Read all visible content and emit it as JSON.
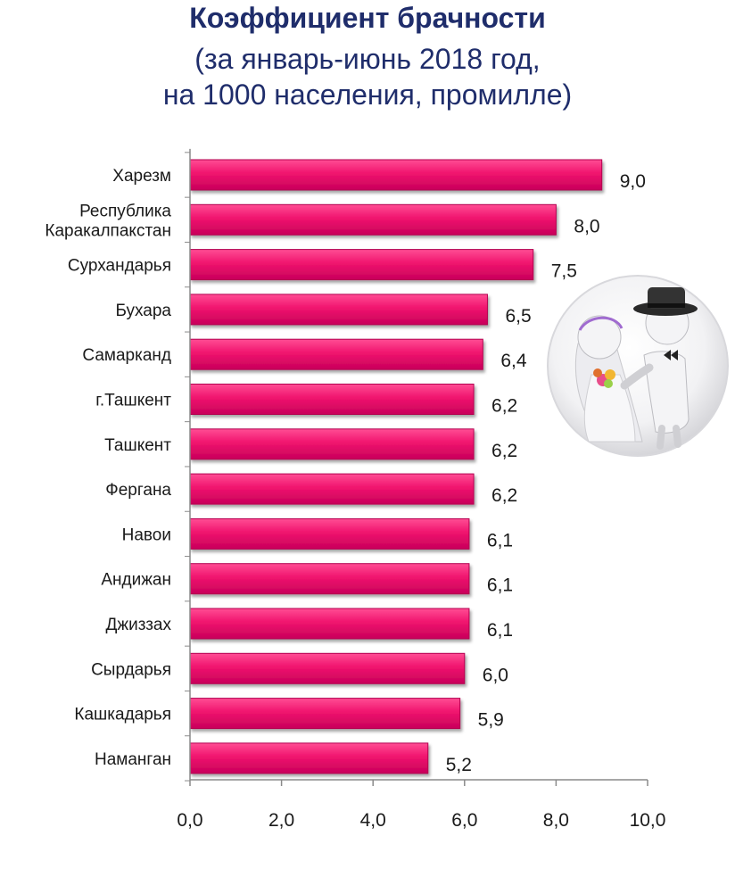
{
  "title": {
    "line1": "Коэффициент брачности",
    "line2": "(за январь-июнь 2018 год,",
    "line3": "на 1000 населения, промилле)"
  },
  "colors": {
    "bar": "#f0146e",
    "bar_edge": "#b3004f",
    "title": "#1f2d6b"
  },
  "illustration": {
    "icon": "wedding-couple-icon"
  },
  "chart_data": {
    "type": "bar",
    "orientation": "horizontal",
    "categories": [
      [
        "Харезм"
      ],
      [
        "Республика",
        "Каракалпакстан"
      ],
      [
        "Сурхандарья"
      ],
      [
        "Бухара"
      ],
      [
        "Самарканд"
      ],
      [
        "г.Ташкент"
      ],
      [
        "Ташкент"
      ],
      [
        "Фергана"
      ],
      [
        "Навои"
      ],
      [
        "Андижан"
      ],
      [
        "Джиззах"
      ],
      [
        "Сырдарья"
      ],
      [
        "Кашкадарья"
      ],
      [
        "Наманган"
      ]
    ],
    "values": [
      9.0,
      8.0,
      7.5,
      6.5,
      6.4,
      6.2,
      6.2,
      6.2,
      6.1,
      6.1,
      6.1,
      6.0,
      5.9,
      5.2
    ],
    "value_labels": [
      "9,0",
      "8,0",
      "7,5",
      "6,5",
      "6,4",
      "6,2",
      "6,2",
      "6,2",
      "6,1",
      "6,1",
      "6,1",
      "6,0",
      "5,9",
      "5,2"
    ],
    "xlim": [
      0,
      10
    ],
    "ticks": [
      0,
      2,
      4,
      6,
      8,
      10
    ],
    "tick_labels": [
      "0,0",
      "2,0",
      "4,0",
      "6,0",
      "8,0",
      "10,0"
    ],
    "grid": false,
    "legend": "none"
  }
}
